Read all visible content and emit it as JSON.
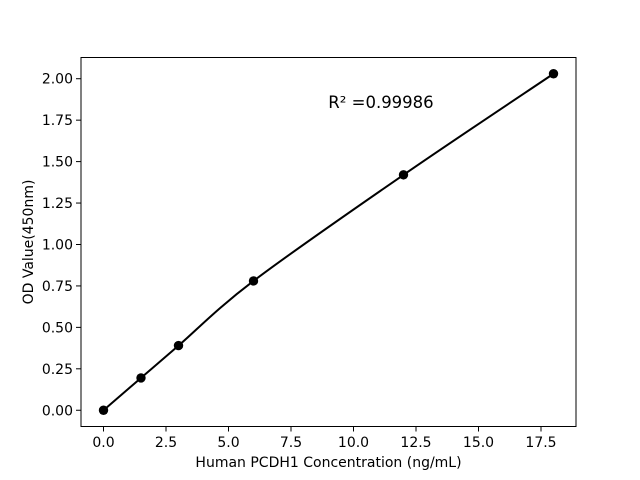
{
  "figure": {
    "background": "#ffffff",
    "foreground": "#000000"
  },
  "chart_data": {
    "type": "line",
    "title": "",
    "xlabel": "Human PCDH1 Concentration (ng/mL)",
    "ylabel": "OD Value(450nm)",
    "x": [
      0,
      1.5,
      3,
      6,
      12,
      18
    ],
    "y": [
      0.0,
      0.195,
      0.39,
      0.78,
      1.42,
      2.03
    ],
    "xlim": [
      -0.9,
      18.9
    ],
    "ylim": [
      -0.098,
      2.128
    ],
    "xticks": [
      0.0,
      2.5,
      5.0,
      7.5,
      10.0,
      12.5,
      15.0,
      17.5
    ],
    "yticks": [
      0.0,
      0.25,
      0.5,
      0.75,
      1.0,
      1.25,
      1.5,
      1.75,
      2.0
    ],
    "xtick_labels": [
      "0.0",
      "2.5",
      "5.0",
      "7.5",
      "10.0",
      "12.5",
      "15.0",
      "17.5"
    ],
    "ytick_labels": [
      "0.00",
      "0.25",
      "0.50",
      "0.75",
      "1.00",
      "1.25",
      "1.50",
      "1.75",
      "2.00"
    ],
    "annotation": {
      "text": "R² =0.99986"
    },
    "line_color": "#000000",
    "marker_color": "#000000",
    "marker_style": "circle",
    "grid": false,
    "legend": null
  }
}
